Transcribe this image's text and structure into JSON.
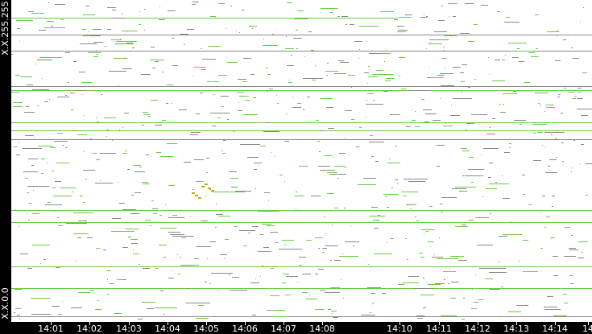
{
  "y_axis": {
    "top_label": "X.X.255.255",
    "bottom_label": "X.X.0.0"
  },
  "x_axis": {
    "ticks": [
      "14:01",
      "14:02",
      "14:03",
      "14:04",
      "14:05",
      "14:06",
      "14:07",
      "14:08",
      "14:10",
      "14:11",
      "14:12",
      "14:13",
      "14:14",
      "14"
    ]
  },
  "colors": {
    "background": "#ffffff",
    "axis": "#000000",
    "flow_green": "#66cc44",
    "flow_gray": "#888888",
    "highlight_yellow": "#ccaa00"
  }
}
